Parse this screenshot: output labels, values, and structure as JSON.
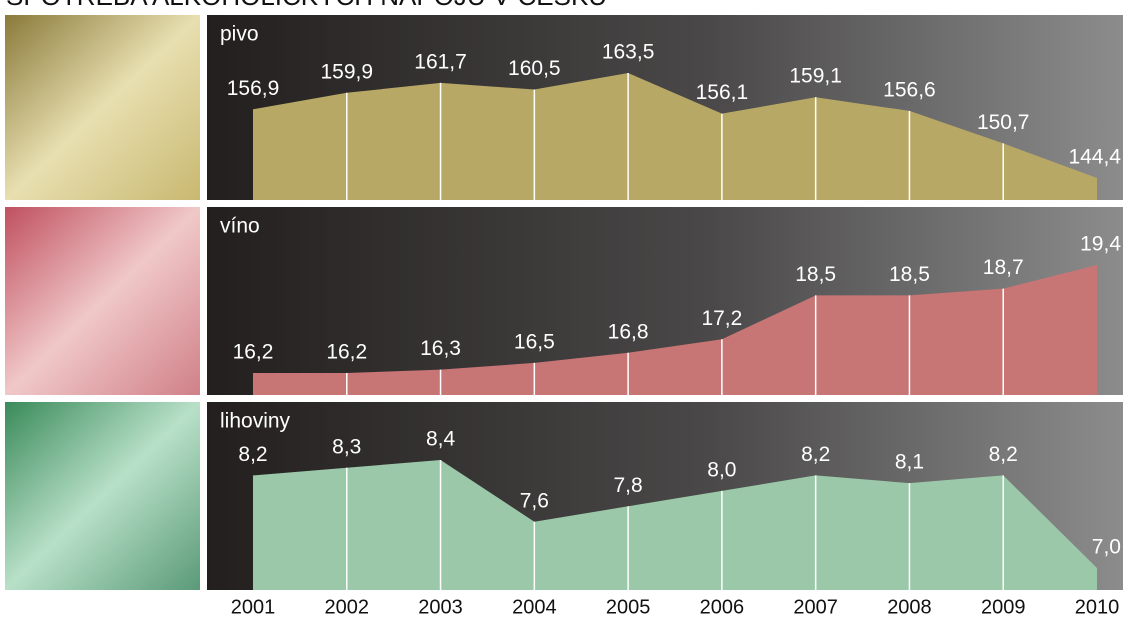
{
  "title": "SPOTŘEBA ALKOHOLICKÝCH NÁPOJŮ V ČESKU",
  "chart_data": [
    {
      "type": "area",
      "title": "pivo",
      "color": "#b8a866",
      "values": [
        156.9,
        159.9,
        161.7,
        160.5,
        163.5,
        156.1,
        159.1,
        156.6,
        150.7,
        144.4
      ],
      "value_labels": [
        "156,9",
        "159,9",
        "161,7",
        "160,5",
        "163,5",
        "156,1",
        "159,1",
        "156,6",
        "150,7",
        "144,4"
      ]
    },
    {
      "type": "area",
      "title": "víno",
      "color": "#c87576",
      "values": [
        16.2,
        16.2,
        16.3,
        16.5,
        16.8,
        17.2,
        18.5,
        18.5,
        18.7,
        19.4
      ],
      "value_labels": [
        "16,2",
        "16,2",
        "16,3",
        "16,5",
        "16,8",
        "17,2",
        "18,5",
        "18,5",
        "18,7",
        "19,4"
      ]
    },
    {
      "type": "area",
      "title": "lihoviny",
      "color": "#9bc8a9",
      "values": [
        8.2,
        8.3,
        8.4,
        7.6,
        7.8,
        8.0,
        8.2,
        8.1,
        8.2,
        7.0
      ],
      "value_labels": [
        "8,2",
        "8,3",
        "8,4",
        "7,6",
        "7,8",
        "8,0",
        "8,2",
        "8,1",
        "8,2",
        "7,0"
      ],
      "categories": [
        "2001",
        "2002",
        "2003",
        "2004",
        "2005",
        "2006",
        "2007",
        "2008",
        "2009",
        "2010"
      ]
    }
  ]
}
